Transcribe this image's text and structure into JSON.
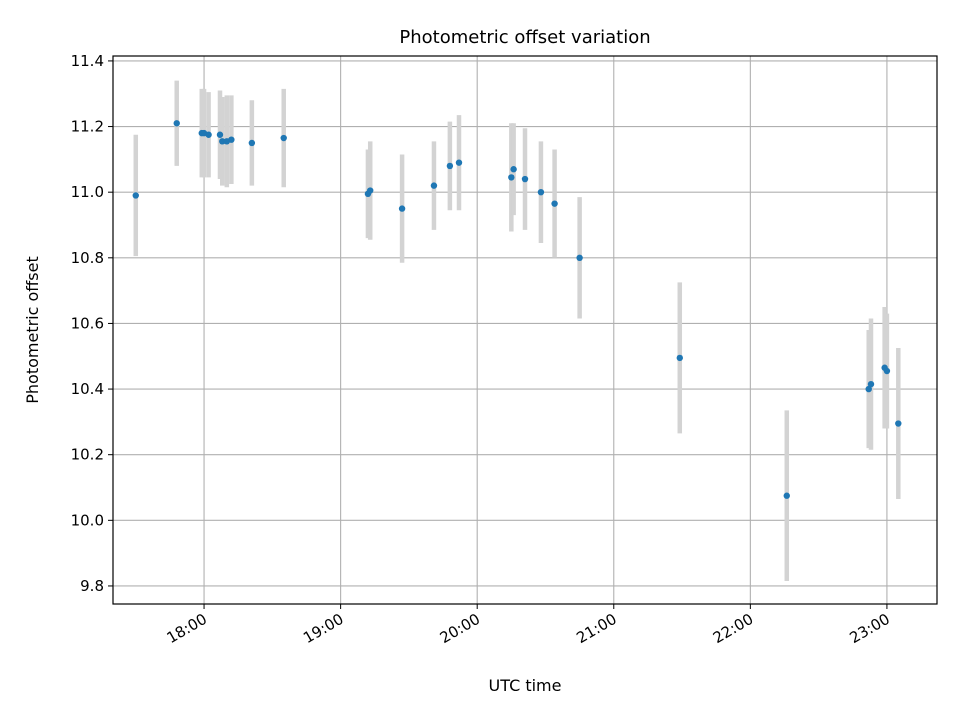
{
  "chart_data": {
    "type": "scatter",
    "title": "Photometric offset variation",
    "xlabel": "UTC time",
    "ylabel": "Photometric offset",
    "x_type": "time",
    "xlim": [
      "17:20",
      "23:22"
    ],
    "ylim": [
      9.745,
      11.415
    ],
    "x_ticks": [
      "18:00",
      "19:00",
      "20:00",
      "21:00",
      "22:00",
      "23:00"
    ],
    "y_ticks": [
      9.8,
      10.0,
      10.2,
      10.4,
      10.6,
      10.8,
      11.0,
      11.2,
      11.4
    ],
    "y_tick_labels": [
      "9.8",
      "10.0",
      "10.2",
      "10.4",
      "10.6",
      "10.8",
      "11.0",
      "11.2",
      "11.4"
    ],
    "grid": true,
    "marker_color": "#1f77b4",
    "errorbar_color": "#d3d3d3",
    "points": [
      {
        "x": "17:30",
        "y": 10.99,
        "err": 0.185
      },
      {
        "x": "17:48",
        "y": 11.21,
        "err": 0.13
      },
      {
        "x": "17:59",
        "y": 11.18,
        "err": 0.135
      },
      {
        "x": "18:00",
        "y": 11.18,
        "err": 0.135
      },
      {
        "x": "18:02",
        "y": 11.175,
        "err": 0.13
      },
      {
        "x": "18:07",
        "y": 11.175,
        "err": 0.135
      },
      {
        "x": "18:08",
        "y": 11.155,
        "err": 0.135
      },
      {
        "x": "18:10",
        "y": 11.155,
        "err": 0.14
      },
      {
        "x": "18:12",
        "y": 11.16,
        "err": 0.135
      },
      {
        "x": "18:21",
        "y": 11.15,
        "err": 0.13
      },
      {
        "x": "18:35",
        "y": 11.165,
        "err": 0.15
      },
      {
        "x": "19:12",
        "y": 10.995,
        "err": 0.135
      },
      {
        "x": "19:13",
        "y": 11.005,
        "err": 0.15
      },
      {
        "x": "19:27",
        "y": 10.95,
        "err": 0.165
      },
      {
        "x": "19:41",
        "y": 11.02,
        "err": 0.135
      },
      {
        "x": "19:48",
        "y": 11.08,
        "err": 0.135
      },
      {
        "x": "19:52",
        "y": 11.09,
        "err": 0.145
      },
      {
        "x": "20:15",
        "y": 11.045,
        "err": 0.165
      },
      {
        "x": "20:16",
        "y": 11.07,
        "err": 0.14
      },
      {
        "x": "20:21",
        "y": 11.04,
        "err": 0.155
      },
      {
        "x": "20:28",
        "y": 11.0,
        "err": 0.155
      },
      {
        "x": "20:34",
        "y": 10.965,
        "err": 0.165
      },
      {
        "x": "20:45",
        "y": 10.8,
        "err": 0.185
      },
      {
        "x": "21:29",
        "y": 10.495,
        "err": 0.23
      },
      {
        "x": "22:16",
        "y": 10.075,
        "err": 0.26
      },
      {
        "x": "22:52",
        "y": 10.4,
        "err": 0.18
      },
      {
        "x": "22:53",
        "y": 10.415,
        "err": 0.2
      },
      {
        "x": "22:59",
        "y": 10.465,
        "err": 0.185
      },
      {
        "x": "23:00",
        "y": 10.455,
        "err": 0.175
      },
      {
        "x": "23:05",
        "y": 10.295,
        "err": 0.23
      }
    ]
  }
}
